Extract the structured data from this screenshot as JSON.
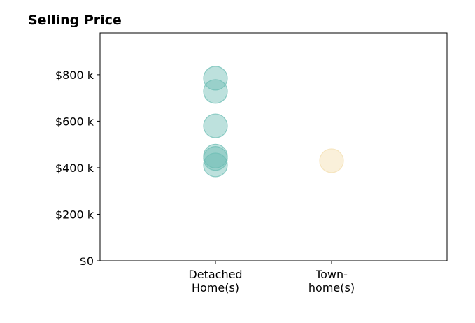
{
  "chart_data": {
    "type": "scatter",
    "title": "Selling Price",
    "xlabel": "",
    "ylabel": "",
    "categories": [
      [
        "Detached",
        "Home(s)"
      ],
      [
        "Town-",
        "home(s)"
      ]
    ],
    "ylim": [
      0,
      980000
    ],
    "yticks": [
      {
        "value": 0,
        "label": "$0"
      },
      {
        "value": 200000,
        "label": "$200 k"
      },
      {
        "value": 400000,
        "label": "$400 k"
      },
      {
        "value": 600000,
        "label": "$600 k"
      },
      {
        "value": 800000,
        "label": "$800 k"
      }
    ],
    "grid": false,
    "series": [
      {
        "category_index": 0,
        "color": "#6cbdb4",
        "values": [
          785000,
          728000,
          580000,
          450000,
          440000,
          412000
        ]
      },
      {
        "category_index": 1,
        "color": "#f3deae",
        "values": [
          430000
        ]
      }
    ]
  }
}
